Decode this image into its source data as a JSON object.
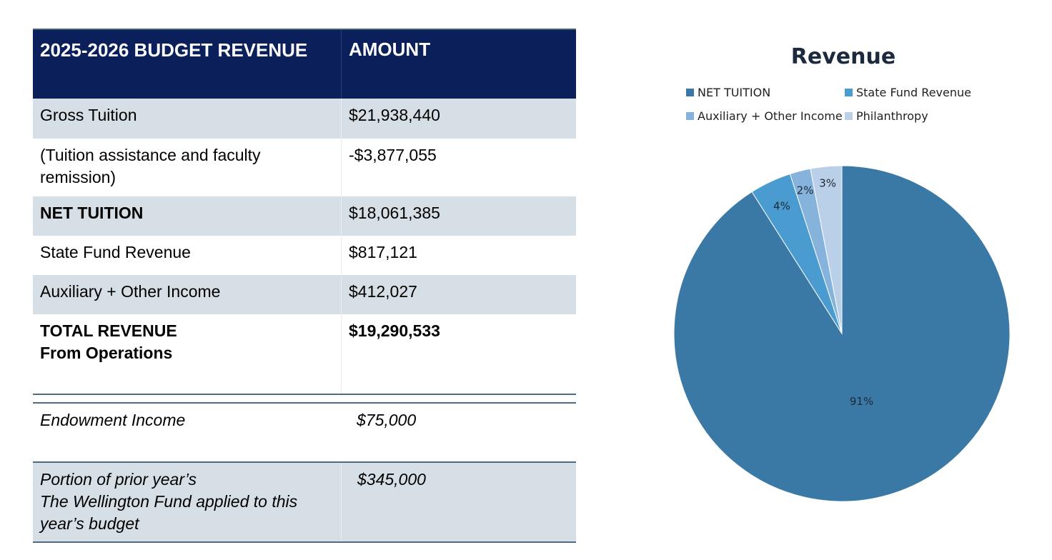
{
  "table": {
    "headers": [
      "2025-2026 BUDGET REVENUE",
      "AMOUNT"
    ],
    "rows": [
      {
        "label": "Gross Tuition",
        "amount": "$21,938,440"
      },
      {
        "label": "(Tuition assistance and faculty remission)",
        "amount": "-$3,877,055"
      },
      {
        "label": "NET TUITION",
        "amount": "$18,061,385"
      },
      {
        "label": "State Fund Revenue",
        "amount": "$817,121"
      },
      {
        "label": "Auxiliary + Other Income",
        "amount": "$412,027"
      },
      {
        "label_line1": "TOTAL REVENUE",
        "label_line2": "From Operations",
        "amount": "$19,290,533"
      }
    ],
    "extra_rows": [
      {
        "label": "Endowment Income",
        "amount": "$75,000"
      },
      {
        "label_line1": "Portion of prior year’s",
        "label_line2": "The Wellington Fund applied to this year’s budget",
        "amount": "$345,000"
      }
    ]
  },
  "chart_data": {
    "type": "pie",
    "title": "Revenue",
    "legend_placement": "top",
    "categories": [
      "NET TUITION",
      "State Fund Revenue",
      "Auxiliary + Other Income",
      "Philanthropy"
    ],
    "values": [
      91,
      4,
      2,
      3
    ],
    "labels": [
      "91%",
      "4%",
      "2%",
      "3%"
    ],
    "colors": [
      "#3a78a6",
      "#4a9bcf",
      "#85b3dc",
      "#b9d0e8"
    ]
  }
}
